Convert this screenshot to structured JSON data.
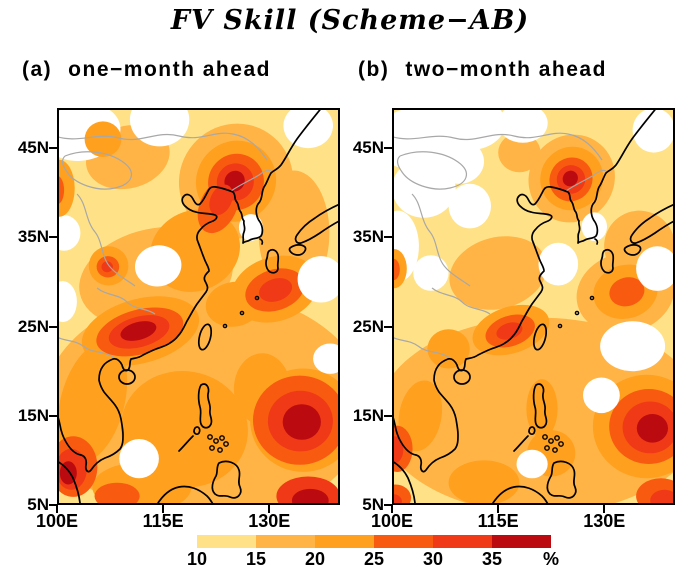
{
  "chart_data": {
    "type": "heatmap",
    "subtype": "filled-contour-map",
    "title": "FV Skill (Scheme−AB)",
    "value_unit": "%",
    "axes": {
      "lon_range": [
        100,
        140
      ],
      "lat_range": [
        5,
        49.5
      ],
      "lat_ticks": [
        {
          "label": "45N",
          "value": 45
        },
        {
          "label": "35N",
          "value": 35
        },
        {
          "label": "25N",
          "value": 25
        },
        {
          "label": "15N",
          "value": 15
        },
        {
          "label": "5N",
          "value": 5
        }
      ],
      "lon_ticks": [
        {
          "label": "100E",
          "value": 100
        },
        {
          "label": "115E",
          "value": 115
        },
        {
          "label": "130E",
          "value": 130
        }
      ]
    },
    "colorbar": {
      "levels": [
        10,
        15,
        20,
        25,
        30,
        35
      ],
      "unit": "%",
      "under_color": "#FFFFFF",
      "colors": [
        "#FFE287",
        "#FFB445",
        "#FFA01E",
        "#F85A10",
        "#EF3917",
        "#BB0A10"
      ]
    },
    "map_colors": {
      "coastline": "#000000",
      "country_border": "#A8A8A8",
      "frame": "#000000"
    },
    "panels": [
      {
        "id": "a",
        "tag": "(a)",
        "heading": "one−month ahead",
        "fill_patches": [
          [
            2,
            121,
            16,
            23,
            13,
            0
          ],
          [
            2,
            114,
            30.5,
            11,
            5.5,
            -12
          ],
          [
            2,
            133.5,
            35.5,
            5,
            7,
            0
          ],
          [
            2,
            110,
            44,
            6,
            3.5,
            -15
          ],
          [
            2,
            125.3,
            41.3,
            8,
            6.5,
            35
          ],
          [
            0,
            103.5,
            46.8,
            5.5,
            3.2,
            -10
          ],
          [
            0,
            114.5,
            48.2,
            4.2,
            3.0,
            0
          ],
          [
            0,
            135.5,
            47.5,
            3.5,
            2.5,
            0
          ],
          [
            0,
            101,
            35.5,
            2.3,
            2.0,
            0
          ],
          [
            0,
            100.8,
            27.8,
            2.0,
            2.3,
            0
          ],
          [
            3,
            106.5,
            46,
            2.6,
            2.0,
            0
          ],
          [
            3,
            100.3,
            40.5,
            2.2,
            3.2,
            0
          ],
          [
            3,
            119.5,
            33.5,
            6.5,
            4.5,
            -25
          ],
          [
            3,
            118,
            13.5,
            9,
            6.5,
            10
          ],
          [
            3,
            105,
            16.5,
            4.5,
            7,
            15
          ],
          [
            3,
            112,
            7,
            7,
            2.8,
            0
          ],
          [
            3,
            129,
            18,
            4,
            4,
            0
          ],
          [
            3,
            125,
            27.5,
            4,
            2.5,
            -10
          ],
          [
            3,
            107.3,
            31.8,
            2.8,
            2.2,
            0
          ],
          [
            3,
            100.2,
            40.3,
            2.0,
            2.6,
            0
          ],
          [
            3,
            111.8,
            24.5,
            8.5,
            3.6,
            -15
          ],
          [
            3,
            125.3,
            41.3,
            5.6,
            4.6,
            35
          ],
          [
            3,
            130.8,
            29.2,
            6.3,
            3.6,
            -18
          ],
          [
            3,
            134.8,
            14.5,
            7.5,
            5.8,
            0
          ],
          [
            4,
            108.5,
            6,
            3.2,
            1.5,
            0
          ],
          [
            4,
            122.8,
            38.5,
            2.6,
            3.2,
            25
          ],
          [
            4,
            125.3,
            41.2,
            3.9,
            3.2,
            35
          ],
          [
            5,
            125.2,
            41.2,
            2.6,
            2.1,
            35
          ],
          [
            6,
            125.1,
            41.3,
            1.4,
            1.2,
            35
          ],
          [
            5,
            123.2,
            39.2,
            1.5,
            1.8,
            25
          ],
          [
            4,
            130.8,
            29.1,
            4.3,
            2.3,
            -18
          ],
          [
            5,
            130.9,
            29.1,
            2.4,
            1.25,
            -18
          ],
          [
            4,
            111.7,
            24.4,
            6.3,
            2.5,
            -15
          ],
          [
            5,
            111.6,
            24.4,
            4.4,
            1.7,
            -15
          ],
          [
            6,
            111.5,
            24.5,
            2.6,
            1.0,
            -15
          ],
          [
            4,
            107.2,
            31.7,
            1.6,
            1.2,
            0
          ],
          [
            5,
            107.1,
            31.7,
            0.8,
            0.6,
            0
          ],
          [
            4,
            100,
            40.3,
            1.0,
            1.6,
            0
          ],
          [
            4,
            134.3,
            14.5,
            6.6,
            5.0,
            0
          ],
          [
            5,
            134.4,
            14.4,
            4.6,
            3.4,
            0
          ],
          [
            6,
            134.6,
            14.3,
            2.7,
            2.0,
            0
          ],
          [
            5,
            135.5,
            6.0,
            4.5,
            2.2,
            0
          ],
          [
            6,
            135.8,
            5.5,
            2.6,
            1.3,
            0
          ],
          [
            4,
            102.3,
            9.3,
            3.4,
            3.4,
            0
          ],
          [
            5,
            102.0,
            9.0,
            2.2,
            2.3,
            0
          ],
          [
            6,
            101.6,
            8.6,
            1.2,
            1.3,
            0
          ],
          [
            0,
            127.4,
            36.1,
            1.7,
            1.5,
            0
          ],
          [
            0,
            114.3,
            31.8,
            3.3,
            2.3,
            -10
          ],
          [
            0,
            137.3,
            30.3,
            3.3,
            2.6,
            0
          ],
          [
            0,
            138.6,
            21.4,
            2.4,
            1.7,
            0
          ],
          [
            0,
            111.6,
            10.2,
            2.8,
            2.2,
            0
          ]
        ]
      },
      {
        "id": "b",
        "tag": "(b)",
        "heading": "two−month ahead",
        "fill_patches": [
          [
            2,
            121,
            15,
            23,
            11,
            0
          ],
          [
            2,
            115,
            31,
            7,
            4,
            -15
          ],
          [
            2,
            125.4,
            41.6,
            6,
            5,
            35
          ],
          [
            2,
            135,
            34,
            5,
            4,
            -25
          ],
          [
            2,
            118,
            44.5,
            3,
            2.2,
            0
          ],
          [
            0,
            104,
            46,
            6.5,
            3.6,
            0
          ],
          [
            0,
            111,
            47.8,
            5,
            3,
            0
          ],
          [
            0,
            104.5,
            40.5,
            4.5,
            3.3,
            0
          ],
          [
            0,
            100.8,
            34,
            3,
            4,
            0
          ],
          [
            0,
            109.5,
            43.5,
            3.5,
            2.5,
            0
          ],
          [
            0,
            118.5,
            47.8,
            3.5,
            2.2,
            0
          ],
          [
            0,
            111,
            38.5,
            3,
            2.5,
            0
          ],
          [
            0,
            105.5,
            31,
            2.5,
            2,
            0
          ],
          [
            0,
            137,
            47,
            3,
            2.5,
            0
          ],
          [
            2,
            133,
            28.8,
            7,
            4.5,
            -15
          ],
          [
            3,
            100.3,
            31.5,
            1.8,
            2.2,
            0
          ],
          [
            3,
            108,
            22.5,
            3,
            2.2,
            0
          ],
          [
            3,
            104,
            15,
            3,
            4,
            10
          ],
          [
            3,
            113,
            7.5,
            5,
            2.5,
            0
          ],
          [
            3,
            121.2,
            15.8,
            2.2,
            3.3,
            0
          ],
          [
            3,
            122.5,
            10.8,
            3.4,
            2.6,
            0
          ],
          [
            3,
            116.8,
            24.6,
            5.6,
            2.6,
            -18
          ],
          [
            3,
            125.4,
            41.6,
            4.4,
            3.6,
            35
          ],
          [
            3,
            133,
            28.9,
            4.6,
            3.0,
            -15
          ],
          [
            3,
            136,
            13.8,
            7.6,
            5.8,
            0
          ],
          [
            4,
            125.3,
            41.5,
            3.0,
            2.5,
            35
          ],
          [
            5,
            125.3,
            41.5,
            2.0,
            1.6,
            35
          ],
          [
            6,
            125.2,
            41.6,
            1.05,
            0.9,
            35
          ],
          [
            4,
            133.2,
            28.9,
            2.5,
            1.6,
            -15
          ],
          [
            4,
            116.7,
            24.5,
            3.6,
            1.7,
            -18
          ],
          [
            5,
            116.6,
            24.5,
            1.9,
            0.9,
            -18
          ],
          [
            4,
            136.3,
            13.8,
            5.6,
            4.2,
            0
          ],
          [
            5,
            136.5,
            13.7,
            3.9,
            2.9,
            0
          ],
          [
            6,
            136.8,
            13.6,
            2.2,
            1.6,
            0
          ],
          [
            4,
            138,
            6,
            3.5,
            2,
            0
          ],
          [
            5,
            138.5,
            5.5,
            2,
            1.2,
            0
          ],
          [
            4,
            100.7,
            11.3,
            2.2,
            2.6,
            0
          ],
          [
            5,
            100.4,
            11.2,
            1.2,
            1.5,
            0
          ],
          [
            4,
            100.5,
            5.8,
            2.2,
            1.5,
            0
          ],
          [
            5,
            100.2,
            5.4,
            1.2,
            0.8,
            0
          ],
          [
            4,
            100.2,
            31.4,
            0.9,
            1.2,
            0
          ],
          [
            0,
            128.6,
            36.2,
            1.8,
            1.6,
            0
          ],
          [
            0,
            134,
            22.8,
            4.6,
            2.8,
            0
          ],
          [
            0,
            129.6,
            17.3,
            2.6,
            2.0,
            0
          ],
          [
            0,
            119.8,
            9.6,
            2.2,
            1.6,
            0
          ],
          [
            0,
            137.5,
            31.5,
            3,
            2.5,
            0
          ],
          [
            0,
            123.5,
            32,
            2.8,
            2.4,
            0
          ]
        ]
      }
    ]
  }
}
